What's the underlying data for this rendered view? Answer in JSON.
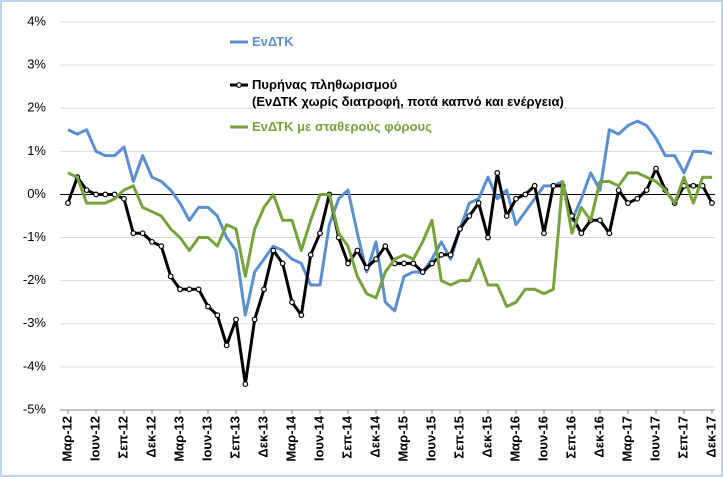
{
  "chart_data": {
    "type": "line",
    "categories": [
      "Μαρ-12",
      null,
      null,
      "Ιουν-12",
      null,
      null,
      "Σεπ-12",
      null,
      null,
      "Δεκ-12",
      null,
      null,
      "Μαρ-13",
      null,
      null,
      "Ιουν-13",
      null,
      null,
      "Σεπ-13",
      null,
      null,
      "Δεκ-13",
      null,
      null,
      "Μαρ-14",
      null,
      null,
      "Ιουν-14",
      null,
      null,
      "Σεπ-14",
      null,
      null,
      "Δεκ-14",
      null,
      null,
      "Μαρ-15",
      null,
      null,
      "Ιουν-15",
      null,
      null,
      "Σεπ-15",
      null,
      null,
      "Δεκ-15",
      null,
      null,
      "Μαρ-16",
      null,
      null,
      "Ιουν-16",
      null,
      null,
      "Σεπ-16",
      null,
      null,
      "Δεκ-16",
      null,
      null,
      "Μαρ-17",
      null,
      null,
      "Ιουν-17",
      null,
      null,
      "Σεπ-17",
      null,
      null,
      "Δεκ-17"
    ],
    "series": [
      {
        "name": "ΕνΔΤΚ",
        "color": "#5b8fcf",
        "values": [
          1.5,
          1.4,
          1.5,
          1.0,
          0.9,
          0.9,
          1.1,
          0.3,
          0.9,
          0.4,
          0.3,
          0.1,
          -0.2,
          -0.6,
          -0.3,
          -0.3,
          -0.5,
          -1.0,
          -1.3,
          -2.8,
          -1.8,
          -1.5,
          -1.2,
          -1.3,
          -1.5,
          -1.6,
          -2.1,
          -2.1,
          -0.7,
          -0.1,
          0.1,
          -0.9,
          -1.8,
          -1.1,
          -2.5,
          -2.7,
          -1.9,
          -1.8,
          -1.8,
          -1.5,
          -1.1,
          -1.5,
          -0.8,
          -0.2,
          -0.1,
          0.4,
          -0.1,
          0.1,
          -0.7,
          -0.4,
          -0.1,
          0.2,
          0.2,
          0.3,
          -0.6,
          -0.1,
          0.5,
          0.1,
          1.5,
          1.4,
          1.6,
          1.7,
          1.6,
          1.3,
          0.9,
          0.9,
          0.5,
          1.0,
          1.0,
          0.95
        ]
      },
      {
        "name": "Πυρήνας πληθωρισμού\n(ΕνΔΤΚ χωρίς διατροφή, ποτά καπνό και ενέργεια)",
        "color": "#000000",
        "markers": true,
        "values": [
          -0.2,
          0.4,
          0.1,
          0.0,
          0.0,
          0.0,
          -0.1,
          -0.9,
          -0.9,
          -1.1,
          -1.2,
          -1.9,
          -2.2,
          -2.2,
          -2.2,
          -2.6,
          -2.8,
          -3.5,
          -2.9,
          -4.4,
          -2.9,
          -2.2,
          -1.3,
          -1.6,
          -2.5,
          -2.8,
          -1.4,
          -0.9,
          0.0,
          -1.0,
          -1.6,
          -1.3,
          -1.7,
          -1.5,
          -1.2,
          -1.6,
          -1.6,
          -1.6,
          -1.8,
          -1.6,
          -1.4,
          -1.4,
          -0.8,
          -0.5,
          -0.2,
          -1.0,
          0.5,
          -0.5,
          -0.1,
          0.0,
          0.2,
          -0.9,
          0.2,
          0.2,
          -0.5,
          -0.9,
          -0.6,
          -0.6,
          -0.9,
          0.1,
          -0.2,
          -0.1,
          0.1,
          0.6,
          0.1,
          -0.2,
          0.2,
          0.2,
          0.2,
          -0.2
        ]
      },
      {
        "name": "ΕνΔΤΚ με σταθερούς φόρους",
        "color": "#77a23c",
        "values": [
          0.5,
          0.4,
          -0.2,
          -0.2,
          -0.2,
          -0.1,
          0.1,
          0.2,
          -0.3,
          -0.4,
          -0.5,
          -0.8,
          -1.0,
          -1.3,
          -1.0,
          -1.0,
          -1.2,
          -0.7,
          -0.8,
          -1.9,
          -0.8,
          -0.3,
          0.0,
          -0.6,
          -0.6,
          -1.3,
          -0.6,
          0.0,
          0.0,
          -0.9,
          -1.2,
          -1.9,
          -2.3,
          -2.4,
          -1.8,
          -1.5,
          -1.4,
          -1.5,
          -1.1,
          -0.6,
          -2.0,
          -2.1,
          -2.0,
          -2.0,
          -1.5,
          -2.1,
          -2.1,
          -2.6,
          -2.5,
          -2.2,
          -2.2,
          -2.3,
          -2.2,
          0.3,
          -0.9,
          -0.3,
          -0.6,
          0.3,
          0.3,
          0.2,
          0.5,
          0.5,
          0.4,
          0.3,
          0.1,
          -0.2,
          0.4,
          -0.2,
          0.4,
          0.4
        ]
      }
    ],
    "ylim": [
      -5,
      4
    ],
    "yticks": [
      {
        "value": -5,
        "label": "-5%"
      },
      {
        "value": -4,
        "label": "-4%"
      },
      {
        "value": -3,
        "label": "-3%"
      },
      {
        "value": -2,
        "label": "-2%"
      },
      {
        "value": -1,
        "label": "-1%"
      },
      {
        "value": 0,
        "label": "0%"
      },
      {
        "value": 1,
        "label": "1%"
      },
      {
        "value": 2,
        "label": "2%"
      },
      {
        "value": 3,
        "label": "3%"
      },
      {
        "value": 4,
        "label": "4%"
      }
    ],
    "grid": true
  }
}
